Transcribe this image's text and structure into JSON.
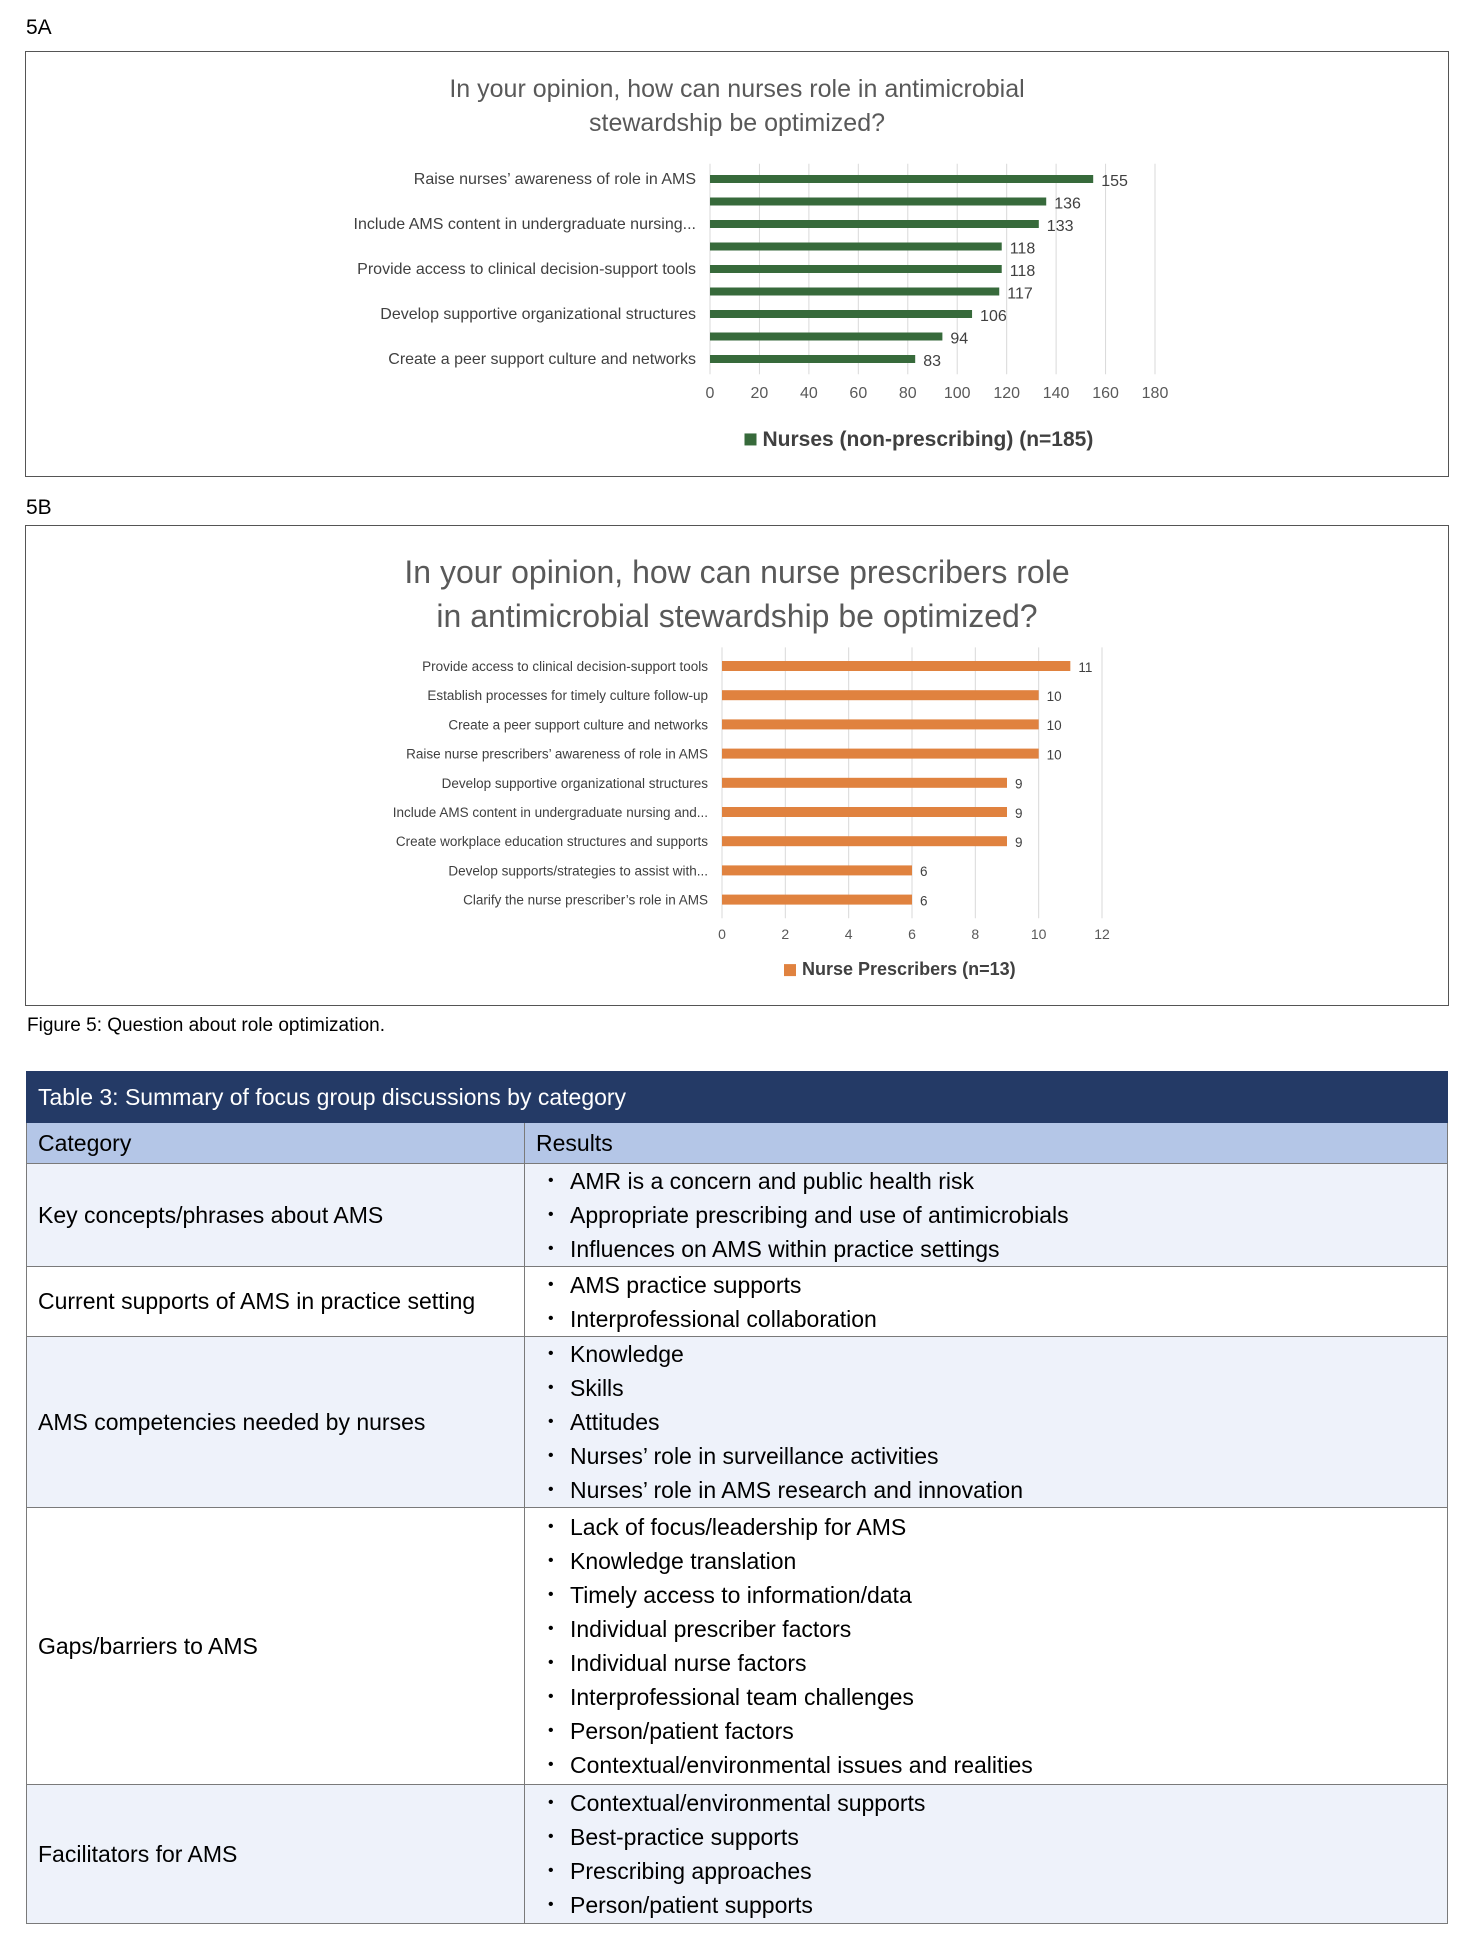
{
  "figure_a": {
    "label": "5A",
    "chart_data": {
      "type": "bar",
      "orientation": "horizontal",
      "title": "In your opinion, how can nurses role in antimicrobial stewardship be optimized?",
      "title_lines": [
        "In your opinion, how can nurses role in antimicrobial",
        "stewardship be optimized?"
      ],
      "categories": [
        "Raise nurses’ awareness of role in AMS",
        "",
        "Include AMS content in undergraduate nursing...",
        "",
        "Provide access to clinical decision-support tools",
        "",
        "Develop supportive organizational structures",
        "",
        "Create a peer support culture and networks"
      ],
      "series": [
        {
          "name": "Nurses (non-prescribing) (n=185)",
          "values": [
            155,
            136,
            133,
            118,
            118,
            117,
            106,
            94,
            83
          ]
        }
      ],
      "xlim": [
        0,
        180
      ],
      "ticks": [
        0,
        20,
        40,
        60,
        80,
        100,
        120,
        140,
        160,
        180
      ],
      "grid": true,
      "legend": "bottom",
      "color": "#376a3b"
    }
  },
  "figure_b": {
    "label": "5B",
    "chart_data": {
      "type": "bar",
      "orientation": "horizontal",
      "title": "In your opinion, how can nurse prescribers role in antimicrobial stewardship be optimized?",
      "title_lines": [
        "In your opinion, how can nurse prescribers role",
        "in antimicrobial stewardship be optimized?"
      ],
      "categories": [
        "Provide access to clinical decision-support tools",
        "Establish processes for timely culture follow-up",
        "Create a peer support culture and networks",
        "Raise nurse prescribers’ awareness of role in AMS",
        "Develop supportive organizational structures",
        "Include AMS content in undergraduate nursing and...",
        "Create workplace education structures and supports",
        "Develop supports/strategies to assist with...",
        "Clarify the nurse prescriber’s role in AMS"
      ],
      "series": [
        {
          "name": "Nurse Prescribers (n=13)",
          "values": [
            11,
            10,
            10,
            10,
            9,
            9,
            9,
            6,
            6
          ]
        }
      ],
      "xlim": [
        0,
        12
      ],
      "ticks": [
        0,
        2,
        4,
        6,
        8,
        10,
        12
      ],
      "grid": true,
      "legend": "bottom",
      "color": "#e0823f"
    }
  },
  "caption": "Figure 5: Question about role optimization.",
  "table": {
    "title": "Table 3: Summary of focus group discussions by category",
    "headers": [
      "Category",
      "Results"
    ],
    "rows": [
      {
        "category": "Key concepts/phrases about AMS",
        "results": [
          "AMR is a concern and public health risk",
          "Appropriate prescribing and use of antimicrobials",
          "Influences on AMS within practice settings"
        ]
      },
      {
        "category": "Current supports of AMS in practice setting",
        "results": [
          "AMS practice supports",
          "Interprofessional collaboration"
        ]
      },
      {
        "category": "AMS competencies needed by nurses",
        "results": [
          "Knowledge",
          "Skills",
          "Attitudes",
          "Nurses’ role in surveillance activities",
          "Nurses’ role in AMS research and innovation"
        ]
      },
      {
        "category": "Gaps/barriers to AMS",
        "results": [
          "Lack of focus/leadership for AMS",
          "Knowledge translation",
          "Timely access to information/data",
          "Individual prescriber factors",
          "Individual nurse factors",
          "Interprofessional team challenges",
          "Person/patient factors",
          "Contextual/environmental issues and realities"
        ]
      },
      {
        "category": "Facilitators for AMS",
        "results": [
          "Contextual/environmental supports",
          "Best-practice supports",
          "Prescribing approaches",
          "Person/patient supports"
        ]
      }
    ]
  }
}
